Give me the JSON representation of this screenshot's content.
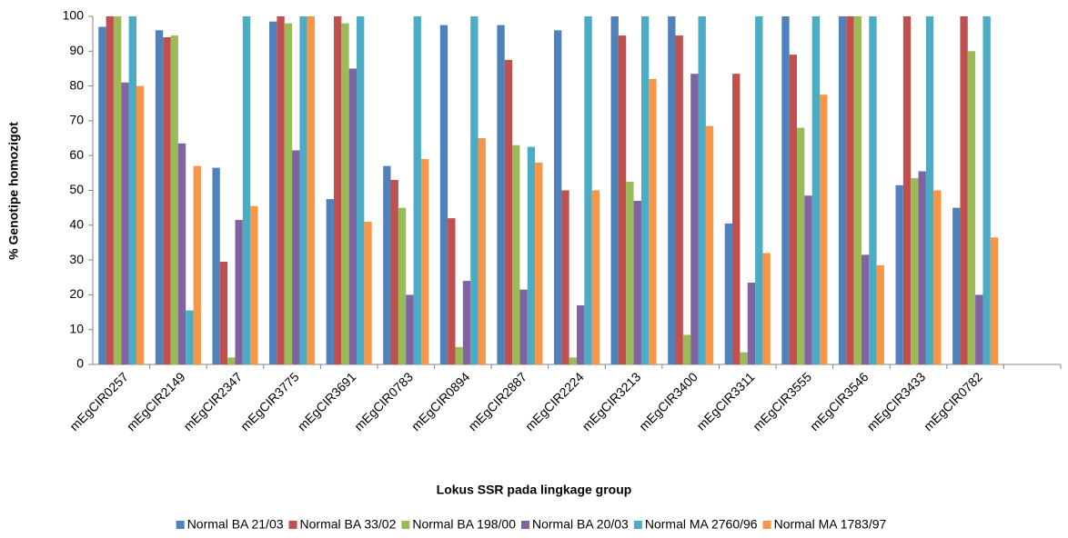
{
  "chart_data": {
    "type": "bar",
    "y_label": "% Genotipe homozigot",
    "x_label": "Lokus  SSR pada lingkage group",
    "categories": [
      "mEgCIR0257",
      "mEgCIR2149",
      "mEgCIR2347",
      "mEgCIR3775",
      "mEgCIR3691",
      "mEgCIR0783",
      "mEgCIR0894",
      "mEgCIR2887",
      "mEgCIR2224",
      "mEgCIR3213",
      "mEgCIR3400",
      "mEgCIR3311",
      "mEgCIR3555",
      "mEgCIR3546",
      "mEgCIR3433",
      "mEgCIR0782",
      null
    ],
    "series": [
      {
        "name": "Normal BA 21/03",
        "color": "#4f81bd",
        "values": [
          97,
          96,
          56.5,
          98.5,
          47.5,
          57,
          97.5,
          97.5,
          96,
          100,
          100,
          40.5,
          100,
          100,
          51.5,
          45,
          null
        ]
      },
      {
        "name": "Normal BA 33/02",
        "color": "#c0504d",
        "values": [
          100,
          94,
          29.5,
          100,
          100,
          53,
          42,
          87.5,
          50,
          94.5,
          94.5,
          83.5,
          89,
          100,
          100,
          100,
          null
        ]
      },
      {
        "name": "Normal BA 198/00",
        "color": "#9bbb59",
        "values": [
          100,
          94.5,
          2,
          98,
          98,
          45,
          5,
          63,
          2,
          52.5,
          8.5,
          3.5,
          68,
          100,
          53.5,
          90,
          null
        ]
      },
      {
        "name": "Normal BA 20/03",
        "color": "#8064a2",
        "values": [
          81,
          63.5,
          41.5,
          61.5,
          85,
          20,
          24,
          21.5,
          17,
          47,
          83.5,
          23.5,
          48.5,
          31.5,
          55.5,
          20,
          null
        ]
      },
      {
        "name": "Normal MA 2760/96",
        "color": "#4bacc6",
        "values": [
          100,
          15.5,
          100,
          100,
          100,
          100,
          100,
          62.5,
          100,
          100,
          100,
          100,
          100,
          100,
          100,
          100,
          null
        ]
      },
      {
        "name": "Normal MA 1783/97",
        "color": "#f79646",
        "values": [
          80,
          57,
          45.5,
          100,
          41,
          59,
          65,
          58,
          50,
          82,
          68.5,
          32,
          77.5,
          28.5,
          50,
          36.5,
          null
        ]
      }
    ],
    "ylim": [
      0,
      100
    ],
    "yticks": [
      0,
      10,
      20,
      30,
      40,
      50,
      60,
      70,
      80,
      90,
      100
    ],
    "grid": false,
    "legend": "bottom"
  }
}
